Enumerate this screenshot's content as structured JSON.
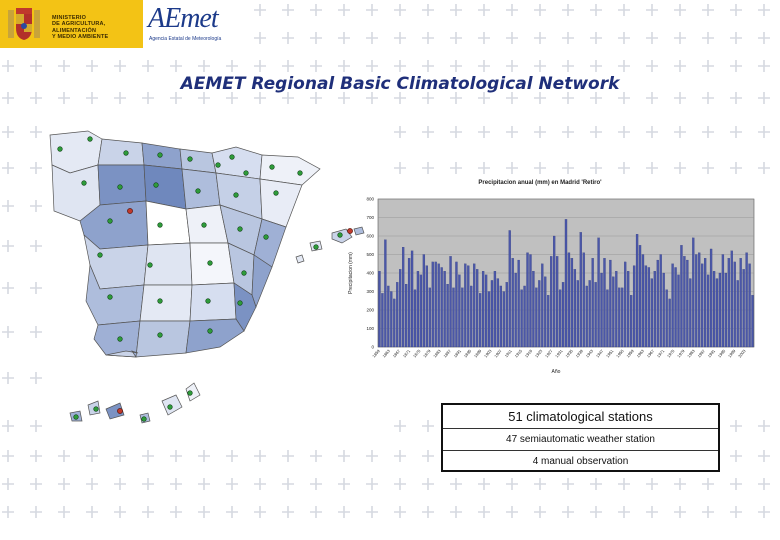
{
  "header": {
    "ministry_text": "MINISTERIO\nDE AGRICULTURA, ALIMENTACIÓN\nY MEDIO AMBIENTE",
    "aemet_logo": "AEmet",
    "aemet_subtitle": "Agencia Estatal de Meteorología",
    "brand_color": "#f3c315",
    "logo_color": "#1c3a8a"
  },
  "title": "AEMET Regional Basic Climatological Network",
  "stats": {
    "total": "51 climatological stations",
    "semiautomatic": "47 semiautomatic weather station",
    "manual": "4 manual observation"
  },
  "chart_data": {
    "type": "bar",
    "title": "Precipitacion anual (mm) en Madrid 'Retiro'",
    "xlabel": "Año",
    "ylabel": "Precipitacion (mm)",
    "ylim": [
      0,
      800
    ],
    "yticks": [
      0,
      100,
      200,
      300,
      400,
      500,
      600,
      700,
      800
    ],
    "xtick_labels": [
      "1859",
      "1863",
      "1867",
      "1871",
      "1875",
      "1879",
      "1883",
      "1887",
      "1891",
      "1895",
      "1899",
      "1903",
      "1907",
      "1911",
      "1915",
      "1919",
      "1923",
      "1927",
      "1931",
      "1935",
      "1939",
      "1943",
      "1947",
      "1951",
      "1955",
      "1959",
      "1963",
      "1967",
      "1971",
      "1975",
      "1979",
      "1983",
      "1987",
      "1991",
      "1995",
      "1999",
      "2003"
    ],
    "series": [
      {
        "values": [
          410,
          290,
          580,
          330,
          300,
          260,
          350,
          420,
          540,
          340,
          480,
          520,
          310,
          410,
          390,
          500,
          440,
          320,
          460,
          460,
          450,
          430,
          410,
          340,
          490,
          320,
          460,
          390,
          320,
          450,
          440,
          330,
          450,
          420,
          290,
          410,
          390,
          300,
          360,
          410,
          370,
          330,
          300,
          350,
          630,
          480,
          400,
          470,
          310,
          330,
          510,
          500,
          410,
          320,
          360,
          450,
          380,
          280,
          490,
          600,
          490,
          310,
          350,
          690,
          510,
          480,
          420,
          360,
          620,
          510,
          330,
          360,
          480,
          350,
          590,
          400,
          480,
          310,
          470,
          380,
          410,
          320,
          320,
          460,
          410,
          280,
          440,
          610,
          550,
          500,
          440,
          430,
          370,
          410,
          470,
          500,
          400,
          310,
          260,
          450,
          430,
          390,
          550,
          490,
          470,
          370,
          590,
          500,
          510,
          450,
          480,
          390,
          530,
          410,
          370,
          400,
          500,
          400,
          480,
          520,
          460,
          360,
          480,
          420,
          510,
          450,
          280
        ]
      }
    ]
  }
}
